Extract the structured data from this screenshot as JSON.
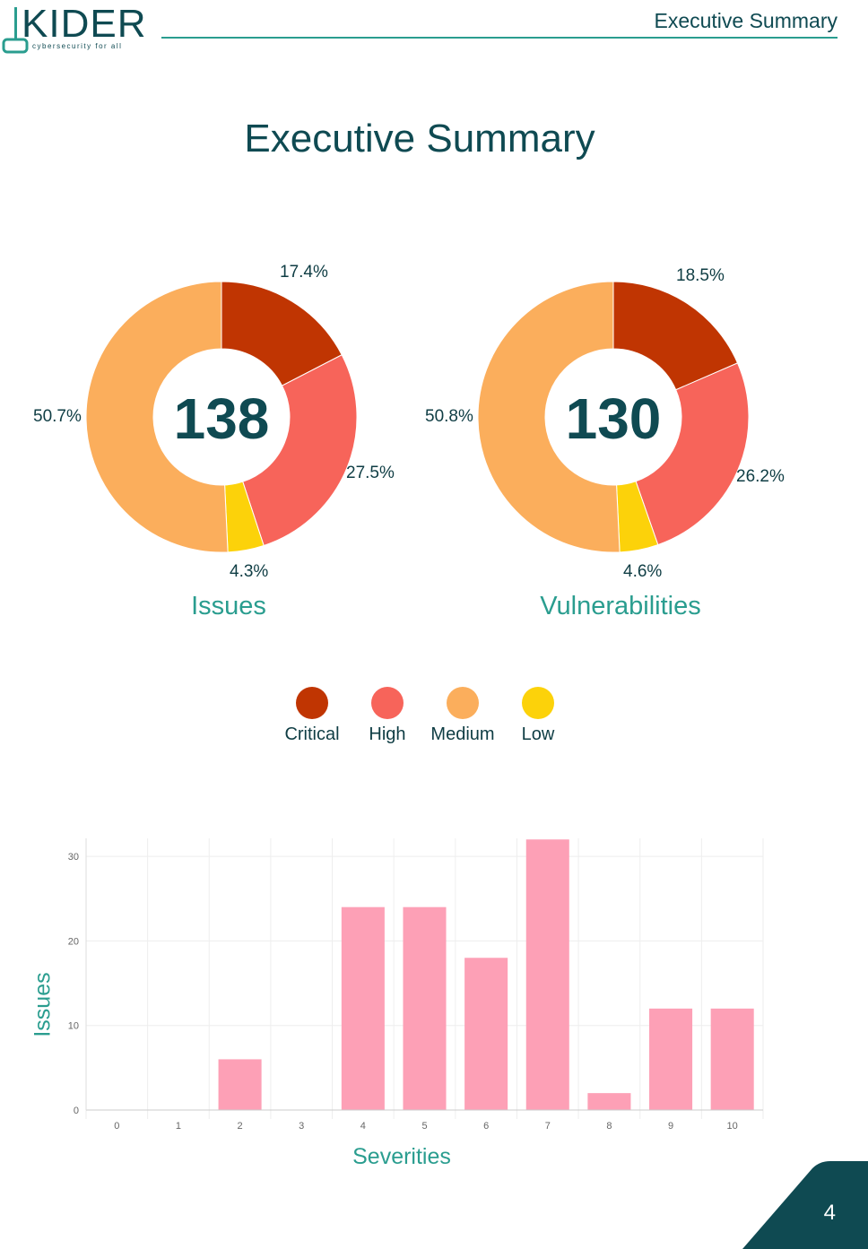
{
  "header": {
    "title": "Executive Summary"
  },
  "logo": {
    "name": "KIDER",
    "tagline": "cybersecurity for all"
  },
  "page_title": "Executive Summary",
  "colors": {
    "critical": "#c03502",
    "high": "#f7645a",
    "medium": "#fbae5c",
    "low": "#fcd20a",
    "bar": "#fda0b6",
    "brand": "#0f4a52",
    "accent": "#2a9d8f"
  },
  "donuts": [
    {
      "label": "Issues",
      "total": "138",
      "slices": [
        {
          "severity": "Critical",
          "pct": 17.4,
          "text": "17.4%"
        },
        {
          "severity": "High",
          "pct": 27.5,
          "text": "27.5%"
        },
        {
          "severity": "Low",
          "pct": 4.3,
          "text": "4.3%"
        },
        {
          "severity": "Medium",
          "pct": 50.7,
          "text": "50.7%"
        }
      ]
    },
    {
      "label": "Vulnerabilities",
      "total": "130",
      "slices": [
        {
          "severity": "Critical",
          "pct": 18.5,
          "text": "18.5%"
        },
        {
          "severity": "High",
          "pct": 26.2,
          "text": "26.2%"
        },
        {
          "severity": "Low",
          "pct": 4.6,
          "text": "4.6%"
        },
        {
          "severity": "Medium",
          "pct": 50.8,
          "text": "50.8%"
        }
      ]
    }
  ],
  "legend": [
    {
      "label": "Critical",
      "color": "#c03502"
    },
    {
      "label": "High",
      "color": "#f7645a"
    },
    {
      "label": "Medium",
      "color": "#fbae5c"
    },
    {
      "label": "Low",
      "color": "#fcd20a"
    }
  ],
  "chart_data": {
    "type": "bar",
    "categories": [
      "0",
      "1",
      "2",
      "3",
      "4",
      "5",
      "6",
      "7",
      "8",
      "9",
      "10"
    ],
    "values": [
      0,
      0,
      6,
      0,
      24,
      24,
      18,
      32,
      2,
      12,
      12
    ],
    "xlabel": "Severities",
    "ylabel": "Issues",
    "ylim": [
      0,
      32
    ],
    "yticks": [
      "0",
      "10",
      "20",
      "30"
    ],
    "grid": true
  },
  "page_number": "4"
}
